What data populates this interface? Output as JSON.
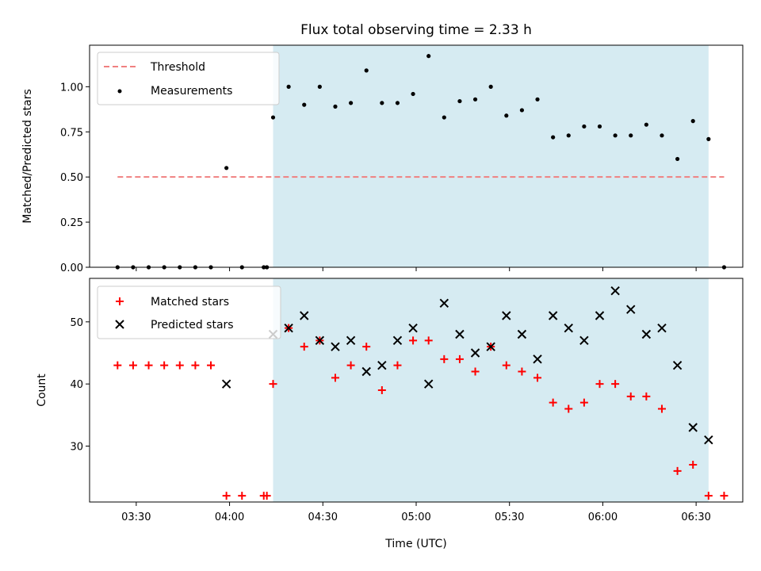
{
  "chart_data": {
    "title": "Flux total observing time = 2.33 h",
    "xlabel": "Time (UTC)",
    "xlim": [
      "03:15",
      "06:45"
    ],
    "x_tick_labels": [
      "03:30",
      "04:00",
      "04:30",
      "05:00",
      "05:30",
      "06:00",
      "06:30"
    ],
    "highlight_span": {
      "start": "04:14",
      "end": "06:34",
      "color": "#add8e6"
    },
    "panels": [
      {
        "type": "scatter",
        "ylabel": "Matched/Predicted stars",
        "ylim": [
          0,
          1.23
        ],
        "y_ticks": [
          "0.00",
          "0.25",
          "0.50",
          "0.75",
          "1.00"
        ],
        "threshold": {
          "name": "Threshold",
          "value": 0.5,
          "x_range": [
            "03:24",
            "06:39"
          ],
          "color": "#f08080"
        },
        "series": [
          {
            "name": "Measurements",
            "marker": "dot",
            "color": "#000000",
            "x": [
              "03:24",
              "03:29",
              "03:34",
              "03:39",
              "03:44",
              "03:49",
              "03:54",
              "03:59",
              "04:04",
              "04:11",
              "04:12",
              "04:14",
              "04:19",
              "04:24",
              "04:29",
              "04:34",
              "04:39",
              "04:44",
              "04:49",
              "04:54",
              "04:59",
              "05:04",
              "05:09",
              "05:14",
              "05:19",
              "05:24",
              "05:29",
              "05:34",
              "05:39",
              "05:44",
              "05:49",
              "05:54",
              "05:59",
              "06:04",
              "06:09",
              "06:14",
              "06:19",
              "06:24",
              "06:29",
              "06:34",
              "06:39"
            ],
            "y": [
              0,
              0,
              0,
              0,
              0,
              0,
              0,
              0.55,
              0,
              0,
              0,
              0.83,
              1.0,
              0.9,
              1.0,
              0.89,
              0.91,
              1.09,
              0.91,
              0.91,
              0.96,
              1.17,
              0.83,
              0.92,
              0.93,
              1.0,
              0.84,
              0.87,
              0.93,
              0.72,
              0.73,
              0.78,
              0.78,
              0.73,
              0.73,
              0.79,
              0.73,
              0.6,
              0.81,
              0.71,
              0
            ]
          }
        ]
      },
      {
        "type": "scatter",
        "ylabel": "Count",
        "ylim": [
          21,
          57
        ],
        "y_ticks": [
          "30",
          "40",
          "50"
        ],
        "series": [
          {
            "name": "Matched stars",
            "marker": "plus",
            "color": "#ff0000",
            "x": [
              "03:24",
              "03:29",
              "03:34",
              "03:39",
              "03:44",
              "03:49",
              "03:54",
              "03:59",
              "04:04",
              "04:11",
              "04:12",
              "04:14",
              "04:19",
              "04:24",
              "04:29",
              "04:34",
              "04:39",
              "04:44",
              "04:49",
              "04:54",
              "04:59",
              "05:04",
              "05:09",
              "05:14",
              "05:19",
              "05:24",
              "05:29",
              "05:34",
              "05:39",
              "05:44",
              "05:49",
              "05:54",
              "05:59",
              "06:04",
              "06:09",
              "06:14",
              "06:19",
              "06:24",
              "06:29",
              "06:34",
              "06:39"
            ],
            "y": [
              43,
              43,
              43,
              43,
              43,
              43,
              43,
              22,
              22,
              22,
              22,
              40,
              49,
              46,
              47,
              41,
              43,
              46,
              39,
              43,
              47,
              47,
              44,
              44,
              42,
              46,
              43,
              42,
              41,
              37,
              36,
              37,
              40,
              40,
              38,
              38,
              36,
              26,
              27,
              22,
              22
            ]
          },
          {
            "name": "Predicted stars",
            "marker": "x",
            "color": "#000000",
            "x": [
              "03:59",
              "04:14",
              "04:19",
              "04:24",
              "04:29",
              "04:34",
              "04:39",
              "04:44",
              "04:49",
              "04:54",
              "04:59",
              "05:04",
              "05:09",
              "05:14",
              "05:19",
              "05:24",
              "05:29",
              "05:34",
              "05:39",
              "05:44",
              "05:49",
              "05:54",
              "05:59",
              "06:04",
              "06:09",
              "06:14",
              "06:19",
              "06:24",
              "06:29",
              "06:34"
            ],
            "y": [
              40,
              48,
              49,
              51,
              47,
              46,
              47,
              42,
              43,
              47,
              49,
              40,
              53,
              48,
              45,
              46,
              51,
              48,
              44,
              51,
              49,
              47,
              51,
              55,
              52,
              48,
              49,
              43,
              33,
              31
            ]
          }
        ]
      }
    ]
  }
}
